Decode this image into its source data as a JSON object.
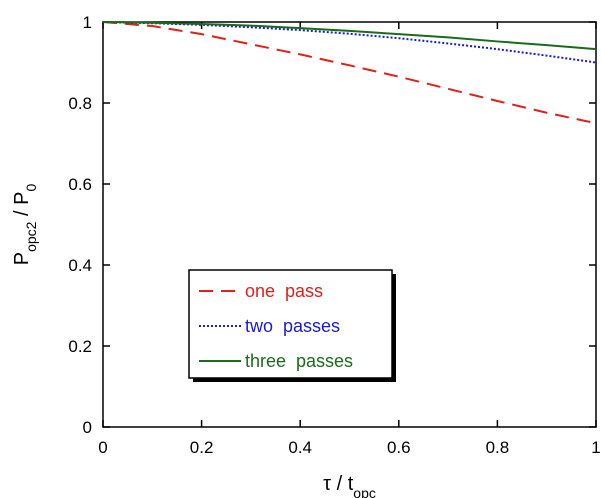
{
  "chart_data": {
    "type": "line",
    "xlabel": [
      {
        "text": "τ / t"
      },
      {
        "text": "opc",
        "sub": true
      }
    ],
    "ylabel": [
      {
        "text": "P"
      },
      {
        "text": "opc2",
        "sub": true
      },
      {
        "text": " / P"
      },
      {
        "text": "0",
        "sub": true
      }
    ],
    "x": [
      0,
      0.1,
      0.2,
      0.3,
      0.4,
      0.5,
      0.6,
      0.7,
      0.8,
      0.9,
      1
    ],
    "series": [
      {
        "name": "one  pass",
        "color": "#e0201b",
        "linestyle": "dashed",
        "values": [
          1,
          0.99,
          0.97,
          0.945,
          0.92,
          0.893,
          0.865,
          0.835,
          0.805,
          0.776,
          0.75
        ]
      },
      {
        "name": "two  passes",
        "color": "#1a1adb",
        "linestyle": "dotted",
        "values": [
          1,
          0.997,
          0.993,
          0.987,
          0.98,
          0.971,
          0.96,
          0.947,
          0.933,
          0.917,
          0.9
        ]
      },
      {
        "name": "three  passes",
        "color": "#1a6b1a",
        "linestyle": "solid",
        "values": [
          1,
          0.998,
          0.995,
          0.991,
          0.985,
          0.978,
          0.97,
          0.962,
          0.952,
          0.943,
          0.933
        ]
      }
    ],
    "xlim": [
      0,
      1
    ],
    "xticks": [
      0,
      0.2,
      0.4,
      0.6,
      0.8,
      1
    ],
    "ylim": [
      0,
      1
    ],
    "yticks": [
      0,
      0.2,
      0.4,
      0.6,
      0.8,
      1
    ],
    "grid": false
  }
}
